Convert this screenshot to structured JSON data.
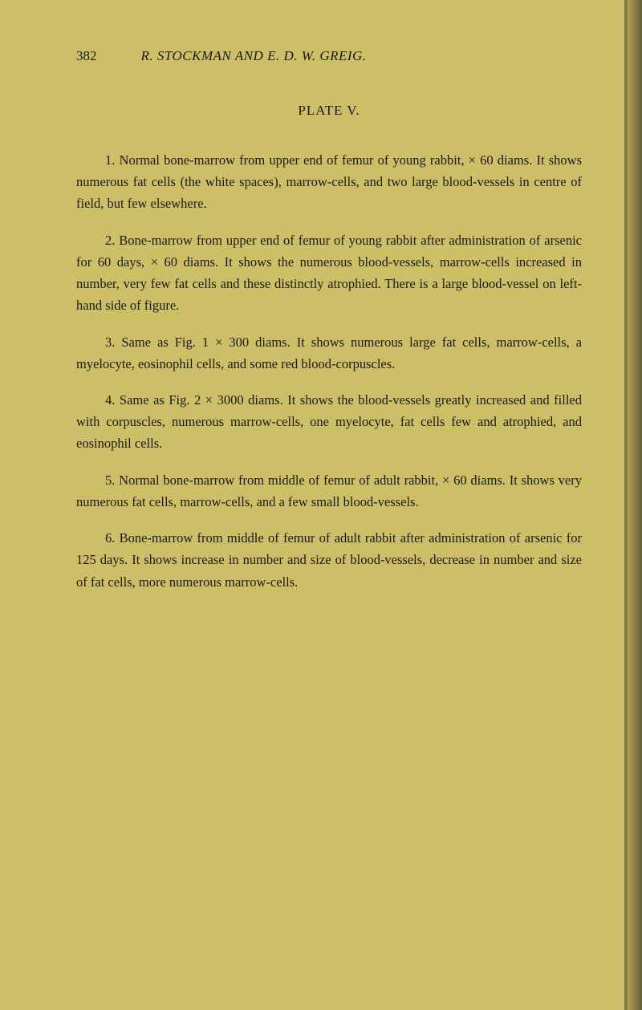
{
  "page_number": "382",
  "header": "R. STOCKMAN AND E. D. W. GREIG.",
  "plate_title": "PLATE V.",
  "paragraphs": [
    "1. Normal bone-marrow from upper end of femur of young rabbit, × 60 diams. It shows numerous fat cells (the white spaces), marrow-cells, and two large blood-vessels in centre of field, but few elsewhere.",
    "2. Bone-marrow from upper end of femur of young rabbit after administration of arsenic for 60 days, × 60 diams. It shows the numerous blood-vessels, marrow-cells increased in number, very few fat cells and these distinctly atrophied. There is a large blood-vessel on left-hand side of figure.",
    "3. Same as Fig. 1 × 300 diams. It shows numerous large fat cells, marrow-cells, a myelocyte, eosinophil cells, and some red blood-corpuscles.",
    "4. Same as Fig. 2 × 3000 diams. It shows the blood-vessels greatly increased and filled with corpuscles, numerous marrow-cells, one myelocyte, fat cells few and atrophied, and eosinophil cells.",
    "5. Normal bone-marrow from middle of femur of adult rabbit, × 60 diams. It shows very numerous fat cells, marrow-cells, and a few small blood-vessels.",
    "6. Bone-marrow from middle of femur of adult rabbit after administration of arsenic for 125 days. It shows increase in number and size of blood-vessels, decrease in number and size of fat cells, more numerous marrow-cells."
  ],
  "colors": {
    "background": "#cdbf67",
    "text": "#1a1a1a"
  }
}
